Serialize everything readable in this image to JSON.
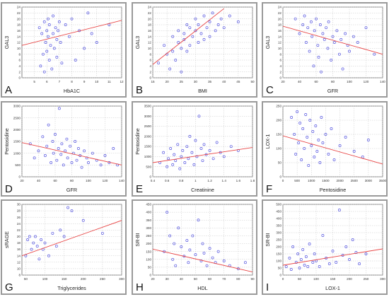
{
  "colors": {
    "point": "#5a5ae0",
    "trend": "#e84545",
    "grid": "#c8c8c8",
    "axis": "#666666",
    "panel_bg": "#ffffff",
    "panel_border": "#9a9a9a"
  },
  "chart_data": [
    {
      "letter": "A",
      "type": "scatter",
      "xlabel": "HbA1C",
      "ylabel": "GAL3",
      "xlim": [
        4,
        12
      ],
      "ylim": [
        0,
        24
      ],
      "xticks": [
        5,
        6,
        7,
        8,
        9,
        10,
        11,
        12
      ],
      "yticks": [
        0,
        2,
        4,
        6,
        8,
        10,
        12,
        14,
        16,
        18,
        20,
        22,
        24
      ],
      "x": [
        5.4,
        5.5,
        5.6,
        5.7,
        5.8,
        5.8,
        5.9,
        6.0,
        6.0,
        6.1,
        6.1,
        6.2,
        6.2,
        6.3,
        6.4,
        6.5,
        6.5,
        6.6,
        6.7,
        6.8,
        6.8,
        6.9,
        7.0,
        7.1,
        7.2,
        7.5,
        7.8,
        8.0,
        8.3,
        8.6,
        9.0,
        9.3,
        9.6,
        10.0,
        11.0
      ],
      "y": [
        17,
        4,
        15,
        8,
        19,
        2,
        12,
        16,
        9,
        20,
        14,
        6,
        18,
        11,
        3,
        15,
        21,
        10,
        17,
        13,
        7,
        16,
        19,
        12,
        5,
        18,
        14,
        20,
        6,
        16,
        10,
        22,
        15,
        12,
        18
      ],
      "trend": [
        [
          4,
          11
        ],
        [
          12,
          19.5
        ]
      ]
    },
    {
      "letter": "B",
      "type": "scatter",
      "xlabel": "BMI",
      "ylabel": "GAL3",
      "xlim": [
        15,
        50
      ],
      "ylim": [
        0,
        24
      ],
      "xticks": [
        15,
        20,
        25,
        30,
        35,
        40,
        45,
        50
      ],
      "yticks": [
        0,
        2,
        4,
        6,
        8,
        10,
        12,
        14,
        16,
        18,
        20,
        22,
        24
      ],
      "x": [
        17,
        19,
        20,
        21,
        22,
        22,
        23,
        24,
        24,
        25,
        25,
        26,
        26,
        27,
        27,
        28,
        28,
        29,
        30,
        30,
        31,
        31,
        32,
        33,
        33,
        34,
        35,
        35,
        36,
        37,
        38,
        39,
        40,
        42,
        45
      ],
      "y": [
        5,
        11,
        8,
        3,
        14,
        9,
        6,
        12,
        16,
        10,
        2,
        15,
        13,
        18,
        9,
        17,
        11,
        14,
        20,
        16,
        12,
        18,
        15,
        21,
        13,
        17,
        19,
        14,
        22,
        16,
        18,
        20,
        17,
        21,
        19
      ],
      "trend": [
        [
          15,
          4.5
        ],
        [
          40,
          23.5
        ]
      ]
    },
    {
      "letter": "C",
      "type": "scatter",
      "xlabel": "GFR",
      "ylabel": "GAL3",
      "xlim": [
        20,
        140
      ],
      "ylim": [
        0,
        24
      ],
      "xticks": [
        20,
        40,
        60,
        80,
        100,
        120,
        140
      ],
      "yticks": [
        0,
        2,
        4,
        6,
        8,
        10,
        12,
        14,
        16,
        18,
        20,
        22,
        24
      ],
      "x": [
        35,
        40,
        44,
        46,
        48,
        50,
        52,
        54,
        55,
        57,
        58,
        60,
        62,
        63,
        65,
        66,
        68,
        70,
        72,
        74,
        75,
        78,
        80,
        82,
        85,
        88,
        90,
        92,
        95,
        98,
        100,
        105,
        110,
        120,
        130
      ],
      "y": [
        20,
        15,
        18,
        21,
        12,
        17,
        9,
        19,
        14,
        4,
        16,
        20,
        11,
        7,
        18,
        2,
        15,
        13,
        17,
        10,
        19,
        6,
        14,
        12,
        16,
        8,
        13,
        3,
        15,
        11,
        9,
        14,
        12,
        17,
        8
      ],
      "trend": [
        [
          20,
          17.5
        ],
        [
          140,
          8
        ]
      ]
    },
    {
      "letter": "D",
      "type": "scatter",
      "xlabel": "GFR",
      "ylabel": "Pentosidine",
      "xlim": [
        20,
        140
      ],
      "ylim": [
        0,
        3000
      ],
      "xticks": [
        20,
        40,
        60,
        80,
        100,
        120,
        140
      ],
      "yticks": [
        0,
        500,
        1000,
        1500,
        2000,
        2500,
        3000
      ],
      "x": [
        30,
        35,
        40,
        45,
        48,
        50,
        52,
        55,
        57,
        58,
        60,
        62,
        64,
        65,
        67,
        68,
        70,
        72,
        74,
        75,
        78,
        80,
        82,
        84,
        86,
        88,
        90,
        92,
        95,
        98,
        100,
        105,
        110,
        115,
        120,
        125,
        130,
        135
      ],
      "y": [
        1400,
        800,
        1100,
        1700,
        900,
        1300,
        2200,
        600,
        1500,
        1000,
        1800,
        700,
        1200,
        2900,
        950,
        1400,
        500,
        1100,
        1600,
        800,
        1300,
        600,
        1000,
        1500,
        700,
        1200,
        900,
        400,
        1100,
        800,
        600,
        1000,
        700,
        500,
        900,
        600,
        1200,
        500
      ],
      "trend": [
        [
          20,
          1450
        ],
        [
          140,
          500
        ]
      ]
    },
    {
      "letter": "E",
      "type": "scatter",
      "xlabel": "Creatinine",
      "ylabel": "Pentosidine",
      "xlim": [
        0.4,
        1.8
      ],
      "ylim": [
        0,
        3500
      ],
      "xticks": [
        0.4,
        0.6,
        0.8,
        1.0,
        1.2,
        1.4,
        1.6,
        1.8
      ],
      "yticks": [
        0,
        500,
        1000,
        1500,
        2000,
        2500,
        3000,
        3500
      ],
      "x": [
        0.5,
        0.55,
        0.6,
        0.62,
        0.65,
        0.68,
        0.7,
        0.72,
        0.75,
        0.78,
        0.8,
        0.82,
        0.85,
        0.88,
        0.9,
        0.92,
        0.95,
        0.98,
        1.0,
        1.02,
        1.05,
        1.08,
        1.1,
        1.12,
        1.15,
        1.2,
        1.25,
        1.3,
        1.35,
        1.4,
        1.5,
        1.6
      ],
      "y": [
        700,
        1200,
        500,
        900,
        1400,
        600,
        1100,
        800,
        1600,
        400,
        1000,
        1300,
        700,
        1500,
        900,
        2000,
        1200,
        600,
        1800,
        1000,
        3000,
        1400,
        800,
        1600,
        1100,
        1300,
        900,
        1700,
        1200,
        1000,
        1500,
        1300
      ],
      "trend": [
        [
          0.4,
          700
        ],
        [
          1.8,
          1450
        ]
      ]
    },
    {
      "letter": "F",
      "type": "scatter",
      "xlabel": "Pentosidine",
      "ylabel": "LOX-1",
      "xlim": [
        0,
        3500
      ],
      "ylim": [
        0,
        250
      ],
      "xticks": [
        0,
        500,
        1000,
        1500,
        2000,
        2500,
        3000,
        3500
      ],
      "yticks": [
        0,
        50,
        100,
        150,
        200,
        250
      ],
      "x": [
        300,
        400,
        450,
        500,
        550,
        600,
        650,
        700,
        750,
        800,
        850,
        900,
        950,
        1000,
        1050,
        1100,
        1150,
        1200,
        1250,
        1300,
        1350,
        1400,
        1500,
        1600,
        1700,
        1800,
        2000,
        2200,
        2500,
        2800,
        3000
      ],
      "y": [
        210,
        150,
        80,
        230,
        120,
        190,
        60,
        170,
        100,
        220,
        140,
        40,
        200,
        110,
        160,
        70,
        180,
        90,
        130,
        50,
        210,
        120,
        150,
        80,
        170,
        60,
        110,
        140,
        90,
        70,
        130
      ],
      "trend": [
        [
          0,
          145
        ],
        [
          3500,
          45
        ]
      ]
    },
    {
      "letter": "G",
      "type": "scatter",
      "xlabel": "Triglycerides",
      "ylabel": "sRAGE",
      "xlim": [
        40,
        300
      ],
      "ylim": [
        8,
        30
      ],
      "xticks": [
        50,
        100,
        150,
        200,
        250,
        300
      ],
      "yticks": [
        8,
        10,
        12,
        14,
        16,
        18,
        20,
        22,
        24,
        26,
        28,
        30
      ],
      "x": [
        50,
        55,
        60,
        65,
        70,
        75,
        80,
        85,
        90,
        95,
        100,
        110,
        120,
        130,
        140,
        150,
        160,
        170,
        200,
        250
      ],
      "y": [
        14,
        19,
        20,
        16,
        18,
        20,
        17,
        13,
        19,
        16,
        18,
        14,
        21,
        17,
        22,
        20,
        29,
        28,
        25,
        21
      ],
      "trend": [
        [
          40,
          14
        ],
        [
          300,
          25
        ]
      ]
    },
    {
      "letter": "H",
      "type": "scatter",
      "xlabel": "HDL",
      "ylabel": "SR-BI",
      "xlim": [
        20,
        90
      ],
      "ylim": [
        0,
        450
      ],
      "xticks": [
        20,
        30,
        40,
        50,
        60,
        70,
        80,
        90
      ],
      "yticks": [
        0,
        50,
        100,
        150,
        200,
        250,
        300,
        350,
        400,
        450
      ],
      "x": [
        28,
        30,
        32,
        34,
        35,
        36,
        38,
        40,
        42,
        44,
        45,
        46,
        48,
        50,
        52,
        54,
        55,
        56,
        58,
        60,
        62,
        64,
        66,
        70,
        74,
        80,
        85
      ],
      "y": [
        150,
        400,
        250,
        100,
        200,
        60,
        300,
        180,
        120,
        220,
        80,
        160,
        250,
        130,
        350,
        90,
        200,
        140,
        60,
        170,
        110,
        80,
        150,
        90,
        60,
        40,
        80
      ],
      "trend": [
        [
          20,
          165
        ],
        [
          90,
          20
        ]
      ]
    },
    {
      "letter": "I",
      "type": "scatter",
      "xlabel": "LOX-1",
      "ylabel": "SR-BI",
      "xlim": [
        0,
        300
      ],
      "ylim": [
        0,
        500
      ],
      "xticks": [
        0,
        50,
        100,
        150,
        200,
        250,
        300
      ],
      "yticks": [
        0,
        50,
        100,
        150,
        200,
        250,
        300,
        350,
        400,
        450,
        500
      ],
      "x": [
        10,
        20,
        25,
        30,
        40,
        45,
        50,
        55,
        60,
        65,
        70,
        75,
        80,
        90,
        95,
        100,
        110,
        120,
        130,
        140,
        150,
        160,
        170,
        180,
        190,
        200,
        210,
        220,
        230,
        250
      ],
      "y": [
        60,
        120,
        40,
        200,
        90,
        150,
        50,
        110,
        180,
        70,
        130,
        60,
        220,
        90,
        150,
        100,
        60,
        280,
        120,
        80,
        170,
        90,
        460,
        140,
        200,
        110,
        250,
        160,
        80,
        150
      ],
      "trend": [
        [
          0,
          70
        ],
        [
          300,
          185
        ]
      ]
    }
  ]
}
